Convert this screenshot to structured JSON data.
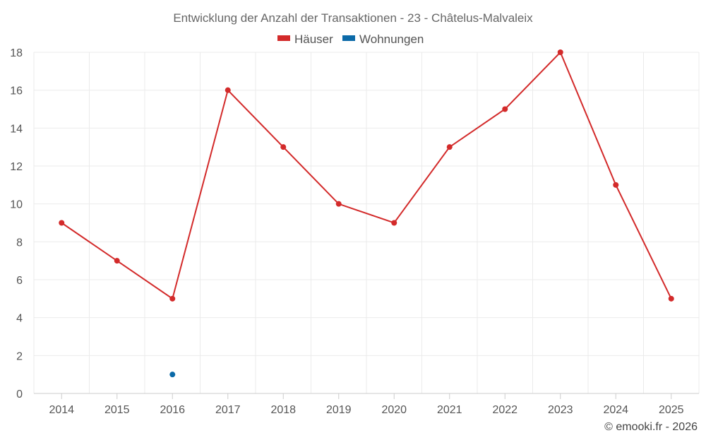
{
  "chart_data": {
    "type": "line",
    "title": "Entwicklung der Anzahl der Transaktionen - 23 - Châtelus-Malvaleix",
    "categories": [
      "2014",
      "2015",
      "2016",
      "2017",
      "2018",
      "2019",
      "2020",
      "2021",
      "2022",
      "2023",
      "2024",
      "2025"
    ],
    "series": [
      {
        "name": "Häuser",
        "color": "#d32a2a",
        "values": [
          9,
          7,
          5,
          16,
          13,
          10,
          9,
          13,
          15,
          18,
          11,
          5
        ]
      },
      {
        "name": "Wohnungen",
        "color": "#0b6aa8",
        "values": [
          null,
          null,
          1,
          null,
          null,
          null,
          null,
          null,
          null,
          null,
          null,
          null
        ]
      }
    ],
    "ylim": [
      0,
      18
    ],
    "yticks": [
      0,
      2,
      4,
      6,
      8,
      10,
      12,
      14,
      16,
      18
    ],
    "xlabel": "",
    "ylabel": "",
    "grid": true,
    "legend": "top-center"
  },
  "credit": "© emooki.fr - 2026"
}
